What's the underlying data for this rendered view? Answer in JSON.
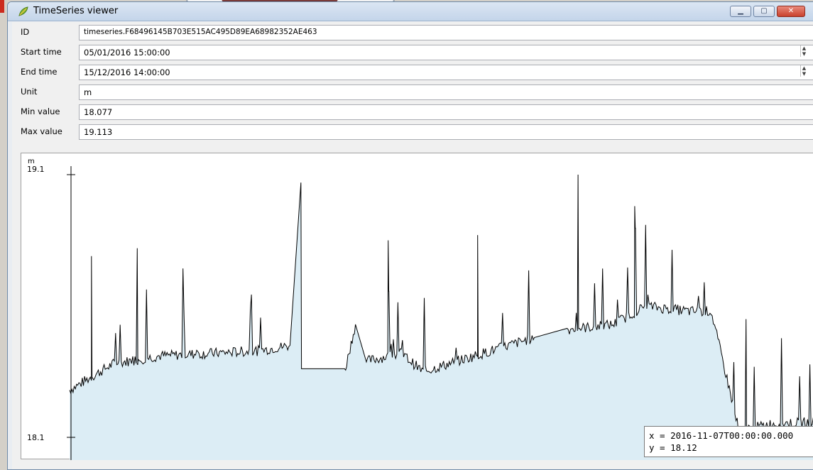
{
  "window": {
    "title": "TimeSeries viewer",
    "icon": "qgis-leaf-icon",
    "controls": [
      "minimize-icon",
      "maximize-icon",
      "close-icon"
    ]
  },
  "fields": {
    "id": {
      "label": "ID",
      "value": "timeseries.F68496145B703E515AC495D89EA68982352AE463"
    },
    "start_time": {
      "label": "Start time",
      "value": "05/01/2016 15:00:00"
    },
    "end_time": {
      "label": "End time",
      "value": "15/12/2016 14:00:00"
    },
    "unit": {
      "label": "Unit",
      "value": "m"
    },
    "min_value": {
      "label": "Min value",
      "value": "18.077"
    },
    "max_value": {
      "label": "Max value",
      "value": "19.113"
    }
  },
  "chart": {
    "unit_label": "m",
    "y_ticks": [
      "19.1",
      "18.1"
    ],
    "tooltip_x": "x = 2016-11-07T00:00:00.000",
    "tooltip_y": "y = 18.12",
    "fill_color": "#dcedf5",
    "line_color": "#000000",
    "marker_color": "#1010d0"
  },
  "chart_data": {
    "type": "area",
    "title": "",
    "xlabel": "",
    "ylabel": "m",
    "ylim": [
      18.077,
      19.113
    ],
    "yticks": [
      18.1,
      19.1
    ],
    "x_range": [
      "2016-01-05T15:00:00",
      "2016-12-15T14:00:00"
    ],
    "series": [
      {
        "x": [
          "2016-01-05",
          "2016-01-25",
          "2016-02-15",
          "2016-03-10",
          "2016-04-01",
          "2016-04-15",
          "2016-05-10",
          "2016-05-15",
          "2016-05-20",
          "2016-06-05",
          "2016-06-15",
          "2016-08-05",
          "2016-08-20",
          "2016-09-10",
          "2016-09-25",
          "2016-10-15",
          "2016-10-25",
          "2016-11-07",
          "2016-11-20",
          "2016-12-15"
        ],
        "values": [
          18.28,
          18.38,
          18.41,
          18.42,
          18.43,
          18.45,
          18.35,
          18.53,
          18.39,
          18.42,
          18.35,
          18.48,
          18.51,
          18.53,
          18.6,
          18.58,
          18.58,
          18.12,
          18.15,
          18.16
        ],
        "spikes": [
          {
            "x": "2016-01-15",
            "y": 18.79
          },
          {
            "x": "2016-02-05",
            "y": 18.82
          },
          {
            "x": "2016-04-20",
            "y": 19.07
          },
          {
            "x": "2016-05-30",
            "y": 18.85
          },
          {
            "x": "2016-07-10",
            "y": 18.87
          },
          {
            "x": "2016-08-25",
            "y": 19.1
          },
          {
            "x": "2016-09-20",
            "y": 18.98
          },
          {
            "x": "2016-11-10",
            "y": 18.55
          }
        ]
      }
    ],
    "grid": false
  }
}
